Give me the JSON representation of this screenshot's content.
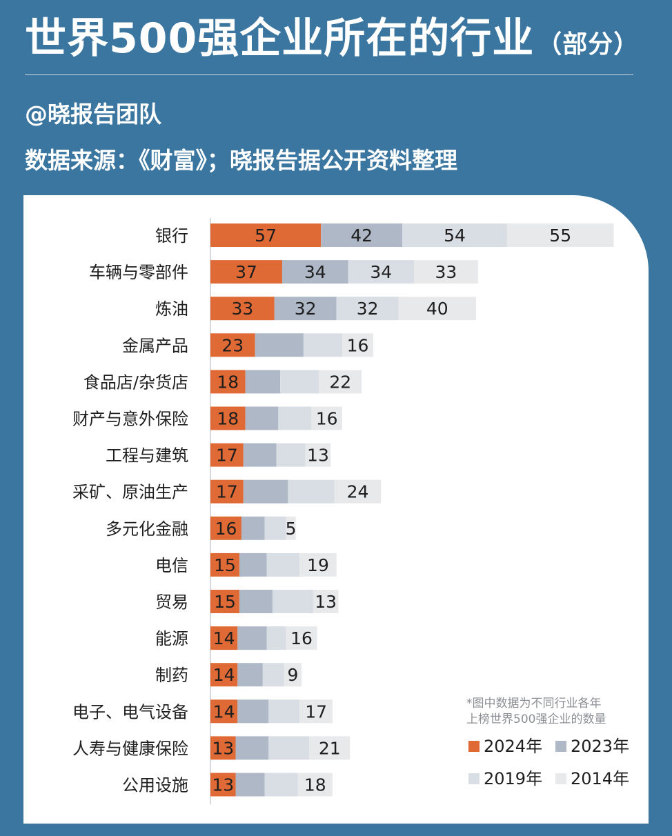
{
  "header": {
    "title": "世界500强企业所在的行业",
    "title_suffix": "（部分）",
    "author": "@晓报告团队",
    "source": "数据来源：《财富》；晓报告据公开资料整理"
  },
  "colors": {
    "background": "#3a76a0",
    "2024": "#e06a35",
    "2023": "#aeb8c6",
    "2019": "#d9dde4",
    "2014": "#e8e9ea"
  },
  "chart_data": {
    "type": "bar",
    "orientation": "horizontal",
    "stacked": true,
    "categories": [
      "银行",
      "车辆与零部件",
      "炼油",
      "金属产品",
      "食品店/杂货店",
      "财产与意外保险",
      "工程与建筑",
      "采矿、原油生产",
      "多元化金融",
      "电信",
      "贸易",
      "能源",
      "制药",
      "电子、电气设备",
      "人寿与健康保险",
      "公用设施"
    ],
    "series": [
      {
        "name": "2024年",
        "values": [
          57,
          37,
          33,
          23,
          18,
          18,
          17,
          17,
          16,
          15,
          15,
          14,
          14,
          14,
          13,
          13
        ]
      },
      {
        "name": "2023年",
        "values": [
          42,
          34,
          32,
          25,
          18,
          17,
          17,
          23,
          12,
          14,
          17,
          15,
          13,
          16,
          17,
          15
        ]
      },
      {
        "name": "2019年",
        "values": [
          54,
          34,
          32,
          20,
          20,
          17,
          15,
          24,
          11,
          17,
          21,
          10,
          11,
          16,
          21,
          17
        ]
      },
      {
        "name": "2014年",
        "values": [
          55,
          33,
          40,
          16,
          22,
          16,
          13,
          24,
          5,
          19,
          13,
          16,
          9,
          17,
          21,
          18
        ]
      }
    ],
    "value_labels_shown": {
      "2024年": "all",
      "2023年": [
        0,
        1,
        2
      ],
      "2019年": [
        0,
        1,
        2
      ],
      "2014年": "all"
    },
    "note_lines": [
      "*图中数据为不同行业各年",
      "上榜世界500强企业的数量"
    ],
    "legend_position": "bottom-right",
    "grid": false
  }
}
